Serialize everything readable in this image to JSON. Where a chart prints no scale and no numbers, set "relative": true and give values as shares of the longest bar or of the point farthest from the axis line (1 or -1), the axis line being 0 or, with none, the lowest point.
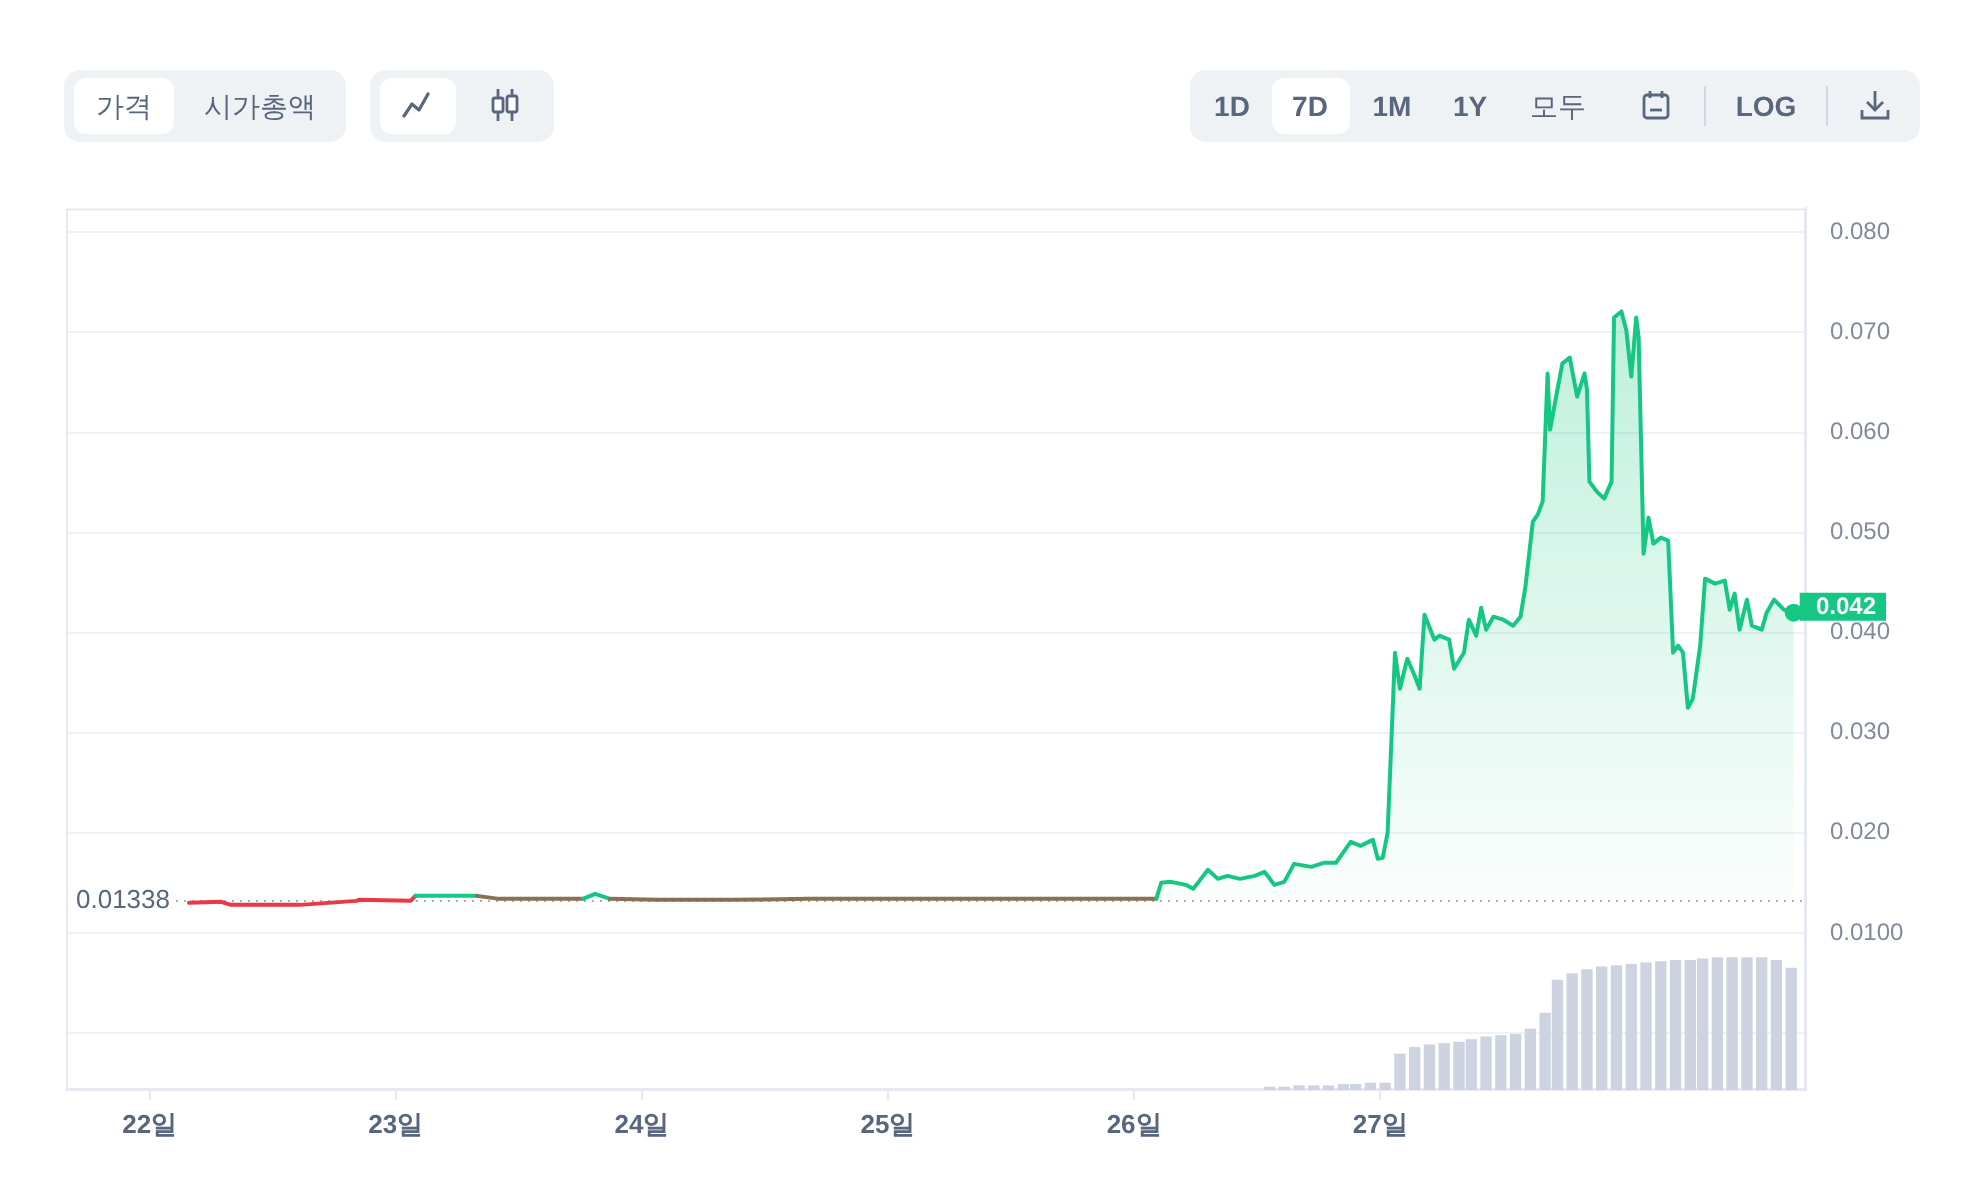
{
  "chart_data": [
    {
      "type": "area",
      "xlim": [
        21.66,
        28.73
      ],
      "xticks": [
        {
          "value": 22,
          "label": "22일"
        },
        {
          "value": 23,
          "label": "23일"
        },
        {
          "value": 24,
          "label": "24일"
        },
        {
          "value": 25,
          "label": "25일"
        },
        {
          "value": 26,
          "label": "26일"
        },
        {
          "value": 27,
          "label": "27일"
        }
      ],
      "ylim": [
        -0.0057,
        0.0824
      ],
      "yticks": [
        {
          "value": 0.08,
          "label": "0.080"
        },
        {
          "value": 0.07,
          "label": "0.070"
        },
        {
          "value": 0.06,
          "label": "0.060"
        },
        {
          "value": 0.05,
          "label": "0.050"
        },
        {
          "value": 0.04,
          "label": "0.040"
        },
        {
          "value": 0.03,
          "label": "0.030"
        },
        {
          "value": 0.02,
          "label": "0.020"
        },
        {
          "value": 0.01,
          "label": "0.0100"
        },
        {
          "value": 0,
          "label": null
        }
      ],
      "grid": "y",
      "series": [
        {
          "color": "#16c784",
          "colors": [
            "#ea3943",
            "#ea3943",
            "#ea3943",
            "#ea3943",
            "#ea3943",
            "#ea3943",
            "#ea3943",
            "#16c784",
            "#8c6f52",
            "#8c6f52",
            "#16c784",
            "#16c784",
            "#8c6f52",
            "#8c6f52",
            "#8c6f52",
            "#8c6f52",
            "#8c6f52",
            "#16c784",
            "#16c784",
            "#16c784",
            "#16c784",
            "#16c784",
            "#16c784",
            "#16c784",
            "#16c784",
            "#16c784",
            "#16c784",
            "#16c784",
            "#16c784",
            "#16c784",
            "#16c784",
            "#16c784",
            "#16c784",
            "#16c784",
            "#16c784",
            "#16c784",
            "#16c784",
            "#16c784",
            "#16c784",
            "#16c784",
            "#16c784",
            "#16c784",
            "#16c784",
            "#16c784",
            "#16c784",
            "#16c784",
            "#16c784",
            "#16c784",
            "#16c784",
            "#16c784",
            "#16c784",
            "#16c784",
            "#16c784",
            "#16c784",
            "#16c784",
            "#16c784",
            "#16c784",
            "#16c784",
            "#16c784",
            "#16c784",
            "#16c784",
            "#16c784",
            "#16c784",
            "#16c784",
            "#16c784",
            "#16c784",
            "#16c784",
            "#16c784",
            "#16c784",
            "#16c784",
            "#16c784",
            "#16c784",
            "#16c784",
            "#16c784",
            "#16c784",
            "#16c784",
            "#16c784",
            "#16c784",
            "#16c784",
            "#16c784",
            "#16c784",
            "#16c784",
            "#16c784",
            "#16c784",
            "#16c784",
            "#16c784",
            "#16c784",
            "#16c784",
            "#16c784",
            "#16c784",
            "#16c784",
            "#16c784",
            "#16c784",
            "#16c784",
            "#16c784",
            "#16c784",
            "#16c784",
            "#16c784",
            "#16c784",
            "#16c784",
            "#16c784",
            "#16c784",
            "#16c784",
            "#16c784",
            "#16c784"
          ],
          "x": [
            22.16,
            22.29,
            22.33,
            22.61,
            22.84,
            22.85,
            23.06,
            23.08,
            23.33,
            23.42,
            23.76,
            23.81,
            23.87,
            24.06,
            24.37,
            24.68,
            25.46,
            26.09,
            26.11,
            26.15,
            26.21,
            26.24,
            26.3,
            26.34,
            26.38,
            26.43,
            26.49,
            26.53,
            26.57,
            26.61,
            26.65,
            26.72,
            26.77,
            26.82,
            26.88,
            26.92,
            26.97,
            26.99,
            27.01,
            27.03,
            27.06,
            27.08,
            27.11,
            27.14,
            27.16,
            27.18,
            27.22,
            27.24,
            27.28,
            27.3,
            27.34,
            27.36,
            27.39,
            27.41,
            27.43,
            27.46,
            27.5,
            27.54,
            27.57,
            27.59,
            27.62,
            27.64,
            27.66,
            27.68,
            27.69,
            27.72,
            27.74,
            27.77,
            27.8,
            27.83,
            27.84,
            27.85,
            27.88,
            27.91,
            27.94,
            27.95,
            27.98,
            28.0,
            28.02,
            28.04,
            28.05,
            28.07,
            28.09,
            28.11,
            28.14,
            28.17,
            28.19,
            28.21,
            28.23,
            28.25,
            28.27,
            28.3,
            28.32,
            28.36,
            28.4,
            28.42,
            28.44,
            28.46,
            28.49,
            28.51,
            28.55,
            28.57,
            28.6,
            28.64,
            28.68
          ],
          "values": [
            0.013,
            0.0131,
            0.0128,
            0.0128,
            0.0132,
            0.0133,
            0.0132,
            0.0137,
            0.0137,
            0.0134,
            0.0134,
            0.0139,
            0.0134,
            0.0133,
            0.0133,
            0.0134,
            0.0134,
            0.0134,
            0.015,
            0.0151,
            0.0148,
            0.0144,
            0.0163,
            0.0154,
            0.0157,
            0.0154,
            0.0157,
            0.0161,
            0.0148,
            0.0151,
            0.0169,
            0.0166,
            0.017,
            0.017,
            0.0191,
            0.0187,
            0.0193,
            0.0174,
            0.0175,
            0.02,
            0.038,
            0.0344,
            0.0374,
            0.0357,
            0.0344,
            0.0418,
            0.0393,
            0.0397,
            0.0393,
            0.0364,
            0.038,
            0.0413,
            0.0397,
            0.0425,
            0.0403,
            0.0416,
            0.0413,
            0.0407,
            0.0416,
            0.0446,
            0.0511,
            0.0518,
            0.0531,
            0.0659,
            0.0603,
            0.0643,
            0.0669,
            0.0675,
            0.0636,
            0.0659,
            0.0643,
            0.0551,
            0.0541,
            0.0534,
            0.0551,
            0.0715,
            0.0721,
            0.0702,
            0.0656,
            0.0715,
            0.0695,
            0.0479,
            0.0515,
            0.0489,
            0.0495,
            0.0492,
            0.038,
            0.0387,
            0.038,
            0.0325,
            0.0334,
            0.0387,
            0.0454,
            0.0449,
            0.0452,
            0.0423,
            0.0439,
            0.0403,
            0.0433,
            0.0407,
            0.0403,
            0.042,
            0.0433,
            0.0423,
            0.042
          ]
        }
      ],
      "ref_lines": [
        {
          "axis": "y",
          "value": 0.01338,
          "label": "0.01338",
          "line_style": "dotted",
          "color": "#a6adbd"
        }
      ],
      "annotations": [
        {
          "text": "0.042",
          "x": 28.68,
          "y": 0.042
        },
        "가격",
        "시가총액",
        "1D",
        "7D",
        "1M",
        "1Y",
        "모두",
        "LOG"
      ]
    },
    {
      "type": "bar",
      "relative": true,
      "xlim": [
        21.66,
        28.73
      ],
      "tick_labels": false,
      "color": "#cdd3e0",
      "x": [
        26.55,
        26.61,
        26.67,
        26.73,
        26.79,
        26.85,
        26.9,
        26.96,
        27.02,
        27.08,
        27.14,
        27.2,
        27.26,
        27.32,
        27.37,
        27.43,
        27.49,
        27.55,
        27.61,
        27.67,
        27.72,
        27.78,
        27.84,
        27.9,
        27.96,
        28.02,
        28.08,
        28.14,
        28.2,
        28.26,
        28.31,
        28.37,
        28.43,
        28.49,
        28.55,
        28.61,
        28.67
      ],
      "values": [
        0.02,
        0.02,
        0.03,
        0.03,
        0.03,
        0.04,
        0.04,
        0.05,
        0.05,
        0.27,
        0.32,
        0.34,
        0.35,
        0.36,
        0.38,
        0.4,
        0.41,
        0.42,
        0.46,
        0.58,
        0.83,
        0.88,
        0.91,
        0.93,
        0.94,
        0.95,
        0.96,
        0.97,
        0.98,
        0.98,
        0.99,
        1.0,
        1.0,
        1.0,
        1.0,
        0.98,
        0.92
      ]
    }
  ]
}
